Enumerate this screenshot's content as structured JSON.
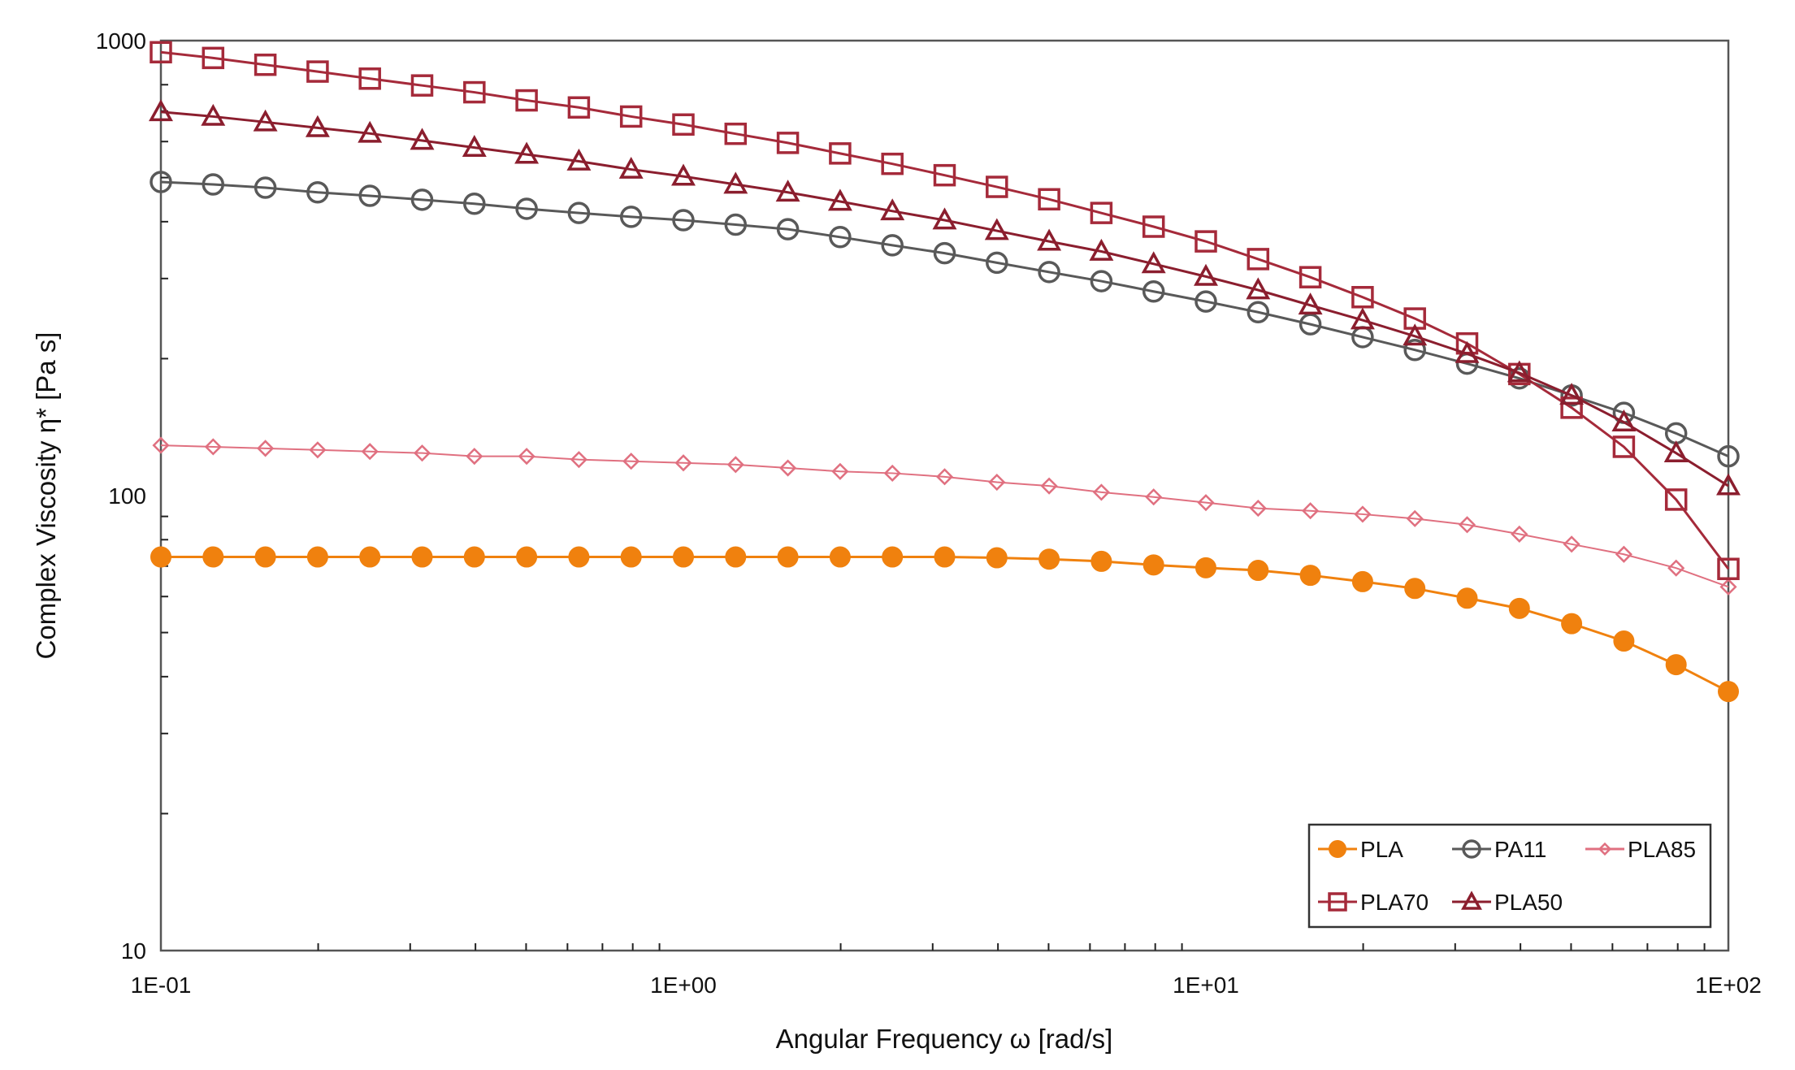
{
  "chart_data": {
    "type": "line",
    "title": "",
    "xlabel": "Angular Frequency ω [rad/s]",
    "ylabel": "Complex Viscosity η* [Pa s]",
    "xscale": "log",
    "yscale": "log",
    "xlim": [
      0.1,
      100
    ],
    "ylim": [
      10,
      1000
    ],
    "xticks": [
      0.1,
      1,
      10,
      100
    ],
    "xtick_labels": [
      "1E-01",
      "1E+00",
      "1E+01",
      "1E+02"
    ],
    "yticks": [
      10,
      100,
      1000
    ],
    "ytick_labels": [
      "10",
      "100",
      "1000"
    ],
    "grid": false,
    "legend_position": "bottom-right",
    "x_log_start": -1,
    "x_log_step": 0.1,
    "series": [
      {
        "name": "PLA",
        "color": "#F0810E",
        "marker": "circle-filled",
        "values": [
          73.3,
          73.3,
          73.3,
          73.3,
          73.3,
          73.3,
          73.3,
          73.3,
          73.3,
          73.3,
          73.3,
          73.3,
          73.3,
          73.3,
          73.3,
          73.3,
          73,
          72.5,
          71.7,
          70.4,
          69.4,
          68.5,
          66.8,
          64.7,
          62.5,
          59.5,
          56.5,
          52.3,
          47.9,
          42.5,
          37.1
        ]
      },
      {
        "name": "PA11",
        "color": "#595959",
        "marker": "circle-open",
        "values": [
          489,
          483,
          475,
          464,
          456,
          447,
          438,
          427,
          418,
          410,
          403,
          394,
          385,
          370,
          355,
          341,
          325,
          310,
          296,
          281,
          267,
          253,
          238,
          223,
          209,
          195,
          181,
          166,
          152,
          137,
          122
        ]
      },
      {
        "name": "PLA85",
        "color": "#E07080",
        "marker": "diamond-open",
        "values": [
          129,
          128,
          127,
          126,
          125,
          124,
          122,
          122,
          120,
          119,
          118,
          117,
          115,
          113,
          112,
          110,
          107,
          105,
          101.7,
          99.3,
          96.5,
          93.8,
          92.6,
          91,
          89,
          86.3,
          82.3,
          78.2,
          74.3,
          69.3,
          63
        ]
      },
      {
        "name": "PLA70",
        "color": "#A52A3A",
        "marker": "square-open",
        "values": [
          943,
          916,
          885,
          855,
          825,
          797,
          770,
          739,
          713,
          681,
          654,
          624,
          596,
          565,
          536,
          506,
          477,
          448,
          418,
          390,
          362,
          331,
          302,
          273,
          245,
          216,
          185,
          156,
          128,
          98,
          69
        ]
      },
      {
        "name": "PLA50",
        "color": "#8B1E2E",
        "marker": "triangle-open",
        "values": [
          697,
          681,
          662,
          643,
          625,
          603,
          582,
          562,
          543,
          521,
          503,
          483,
          464,
          443,
          422,
          403,
          382,
          362,
          344,
          323,
          303,
          283,
          262,
          243,
          224,
          205,
          186,
          166,
          145,
          124,
          105
        ]
      }
    ]
  }
}
